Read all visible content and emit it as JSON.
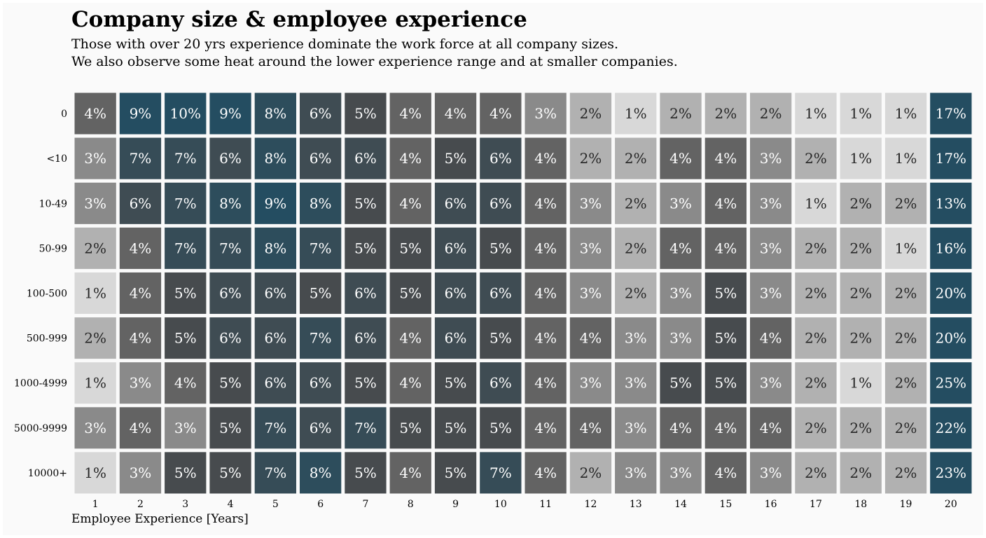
{
  "chart_data": {
    "type": "heatmap",
    "title": "Company size & employee experience",
    "subtitle_lines": [
      "Those with over 20 yrs experience dominate the work force at all company sizes.",
      "We also observe some heat around the lower experience range and at smaller companies."
    ],
    "xlabel": "Employee Experience [Years]",
    "ylabel": "",
    "x_categories": [
      "1",
      "2",
      "3",
      "4",
      "5",
      "6",
      "7",
      "8",
      "9",
      "10",
      "11",
      "12",
      "13",
      "14",
      "15",
      "16",
      "17",
      "18",
      "19",
      "20"
    ],
    "y_categories": [
      "0",
      "<10",
      "10-49",
      "50-99",
      "100-500",
      "500-999",
      "1000-4999",
      "5000-9999",
      "10000+"
    ],
    "value_format": "percent",
    "values": [
      [
        4,
        9,
        10,
        9,
        8,
        6,
        5,
        4,
        4,
        4,
        3,
        2,
        1,
        2,
        2,
        2,
        1,
        1,
        1,
        17
      ],
      [
        3,
        7,
        7,
        6,
        8,
        6,
        6,
        4,
        5,
        6,
        4,
        2,
        2,
        4,
        4,
        3,
        2,
        1,
        1,
        17
      ],
      [
        3,
        6,
        7,
        8,
        9,
        8,
        5,
        4,
        6,
        6,
        4,
        3,
        2,
        3,
        4,
        3,
        1,
        2,
        2,
        13
      ],
      [
        2,
        4,
        7,
        7,
        8,
        7,
        5,
        5,
        6,
        5,
        4,
        3,
        2,
        4,
        4,
        3,
        2,
        2,
        1,
        16
      ],
      [
        1,
        4,
        5,
        6,
        6,
        5,
        6,
        5,
        6,
        6,
        4,
        3,
        2,
        3,
        5,
        3,
        2,
        2,
        2,
        20
      ],
      [
        2,
        4,
        5,
        6,
        6,
        7,
        6,
        4,
        6,
        5,
        4,
        4,
        3,
        3,
        5,
        4,
        2,
        2,
        2,
        20
      ],
      [
        1,
        3,
        4,
        5,
        6,
        6,
        5,
        4,
        5,
        6,
        4,
        3,
        3,
        5,
        5,
        3,
        2,
        1,
        2,
        25
      ],
      [
        3,
        4,
        3,
        5,
        7,
        6,
        7,
        5,
        5,
        5,
        4,
        4,
        3,
        4,
        4,
        4,
        2,
        2,
        2,
        22
      ],
      [
        1,
        3,
        5,
        5,
        7,
        8,
        5,
        4,
        5,
        7,
        4,
        2,
        3,
        3,
        4,
        3,
        2,
        2,
        2,
        23
      ]
    ],
    "colormap": [
      "#d8d8d8",
      "#4b4b4c",
      "#244d61"
    ],
    "grid": false,
    "legend": "none"
  }
}
